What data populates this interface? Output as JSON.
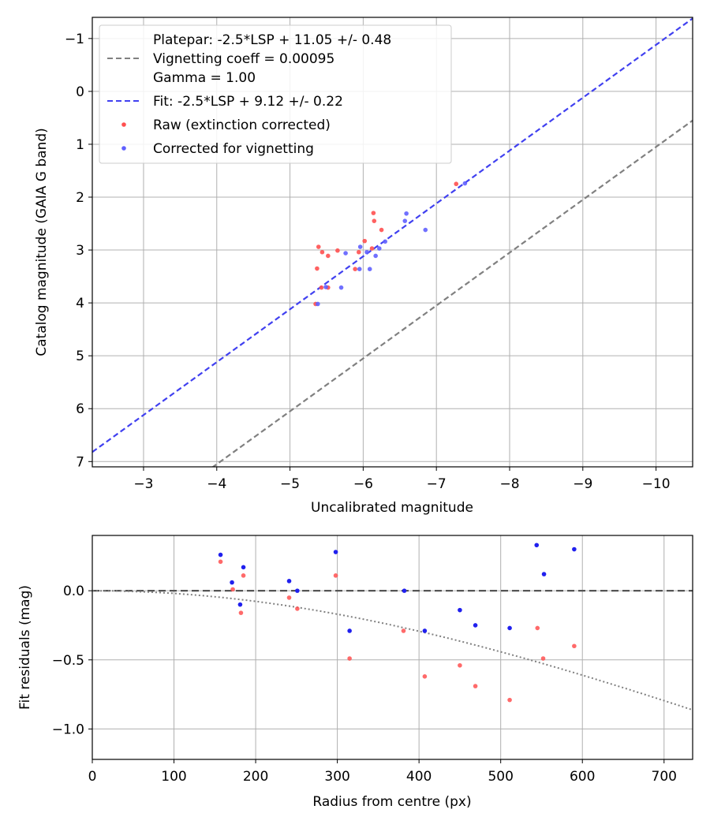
{
  "chart_data": [
    {
      "type": "scatter",
      "title": "",
      "xlabel": "Uncalibrated magnitude",
      "ylabel": "Catalog magnitude (GAIA G band)",
      "xlim": [
        -2.3,
        -10.5
      ],
      "ylim": [
        7.1,
        -1.4
      ],
      "x_inverted": true,
      "y_inverted": true,
      "xticks": [
        -3,
        -4,
        -5,
        -6,
        -7,
        -8,
        -9,
        -10
      ],
      "xtick_labels": [
        "−3",
        "−4",
        "−5",
        "−6",
        "−7",
        "−8",
        "−9",
        "−10"
      ],
      "yticks": [
        -1,
        0,
        1,
        2,
        3,
        4,
        5,
        6,
        7
      ],
      "ytick_labels": [
        "−1",
        "0",
        "1",
        "2",
        "3",
        "4",
        "5",
        "6",
        "7"
      ],
      "grid": true,
      "legend_position": "top-left",
      "legend": [
        {
          "label_lines": [
            "Platepar: -2.5*LSP + 11.05 +/- 0.48",
            "Vignetting coeff = 0.00095",
            "Gamma = 1.00"
          ],
          "style": "dashed-line",
          "color": "#808080"
        },
        {
          "label_lines": [
            "Fit: -2.5*LSP + 9.12 +/- 0.22"
          ],
          "style": "dashed-line",
          "color": "#4040f0"
        },
        {
          "label_lines": [
            "Raw (extinction corrected)"
          ],
          "style": "dot",
          "color": "#ff5050"
        },
        {
          "label_lines": [
            "Corrected for vignetting"
          ],
          "style": "dot",
          "color": "#6060ff"
        }
      ],
      "lines": [
        {
          "name": "Platepar",
          "slope": 1,
          "intercept": 11.05,
          "color": "#808080",
          "dash": true
        },
        {
          "name": "Fit",
          "slope": 1,
          "intercept": 9.12,
          "color": "#4040f0",
          "dash": true
        }
      ],
      "series": [
        {
          "name": "Raw (extinction corrected)",
          "color": "#ff5050",
          "points": [
            [
              -7.27,
              1.75
            ],
            [
              -6.14,
              2.3
            ],
            [
              -6.15,
              2.45
            ],
            [
              -6.25,
              2.62
            ],
            [
              -6.02,
              2.83
            ],
            [
              -5.39,
              2.94
            ],
            [
              -5.44,
              3.04
            ],
            [
              -5.52,
              3.11
            ],
            [
              -5.65,
              3.01
            ],
            [
              -5.94,
              3.04
            ],
            [
              -6.12,
              2.97
            ],
            [
              -5.37,
              3.35
            ],
            [
              -5.89,
              3.36
            ],
            [
              -5.43,
              3.71
            ],
            [
              -5.52,
              3.71
            ],
            [
              -5.35,
              4.02
            ]
          ]
        },
        {
          "name": "Corrected for vignetting",
          "color": "#6060ff",
          "points": [
            [
              -7.39,
              1.74
            ],
            [
              -6.59,
              2.31
            ],
            [
              -6.57,
              2.45
            ],
            [
              -6.85,
              2.62
            ],
            [
              -6.3,
              2.84
            ],
            [
              -6.22,
              2.97
            ],
            [
              -5.96,
              2.94
            ],
            [
              -6.05,
              3.04
            ],
            [
              -5.76,
              3.06
            ],
            [
              -6.17,
              3.11
            ],
            [
              -5.95,
              3.36
            ],
            [
              -6.09,
              3.36
            ],
            [
              -5.49,
              3.7
            ],
            [
              -5.7,
              3.71
            ],
            [
              -5.38,
              4.02
            ]
          ]
        }
      ]
    },
    {
      "type": "scatter",
      "title": "",
      "xlabel": "Radius from centre (px)",
      "ylabel": "Fit residuals (mag)",
      "xlim": [
        0,
        735
      ],
      "ylim": [
        -1.22,
        0.4
      ],
      "xticks": [
        0,
        100,
        200,
        300,
        400,
        500,
        600,
        700
      ],
      "xtick_labels": [
        "0",
        "100",
        "200",
        "300",
        "400",
        "500",
        "600",
        "700"
      ],
      "yticks": [
        0.0,
        -0.5,
        -1.0
      ],
      "ytick_labels": [
        "0.0",
        "−0.5",
        "−1.0"
      ],
      "grid": true,
      "reference_line": {
        "y": 0.0,
        "color": "#555555",
        "dash": true
      },
      "vignetting_curve": {
        "coeff": 0.00095,
        "gamma": 1.0,
        "color": "#808080",
        "dotted": true
      },
      "series": [
        {
          "name": "Raw (extinction corrected)",
          "color": "#ff5050",
          "points": [
            [
              157,
              0.21
            ],
            [
              172,
              0.01
            ],
            [
              182,
              -0.16
            ],
            [
              185,
              0.11
            ],
            [
              241,
              -0.05
            ],
            [
              251,
              -0.13
            ],
            [
              298,
              0.11
            ],
            [
              315,
              -0.49
            ],
            [
              381,
              -0.29
            ],
            [
              407,
              -0.62
            ],
            [
              450,
              -0.54
            ],
            [
              469,
              -0.69
            ],
            [
              511,
              -0.79
            ],
            [
              545,
              -0.27
            ],
            [
              552,
              -0.49
            ],
            [
              590,
              -0.4
            ]
          ]
        },
        {
          "name": "Corrected for vignetting",
          "color": "#2020ee",
          "points": [
            [
              157,
              0.26
            ],
            [
              171,
              0.06
            ],
            [
              181,
              -0.1
            ],
            [
              185,
              0.17
            ],
            [
              241,
              0.07
            ],
            [
              251,
              0.0
            ],
            [
              298,
              0.28
            ],
            [
              315,
              -0.29
            ],
            [
              382,
              0.0
            ],
            [
              407,
              -0.29
            ],
            [
              450,
              -0.14
            ],
            [
              469,
              -0.25
            ],
            [
              511,
              -0.27
            ],
            [
              544,
              0.33
            ],
            [
              553,
              0.12
            ],
            [
              590,
              0.3
            ]
          ]
        }
      ]
    }
  ]
}
